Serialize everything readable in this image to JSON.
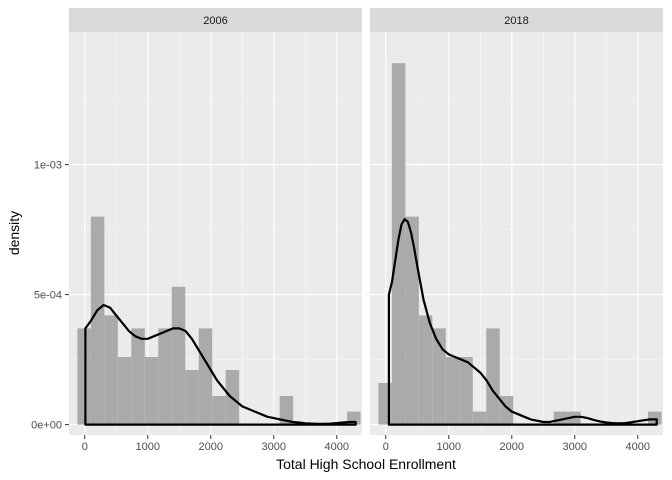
{
  "chart_data": {
    "type": "bar",
    "subtype": "faceted-histogram-with-density",
    "xlabel": "Total High School Enrollment",
    "ylabel": "density",
    "xlim": [
      -250,
      4400
    ],
    "ylim": [
      -4e-05,
      0.00151
    ],
    "x_ticks": [
      0,
      1000,
      2000,
      3000,
      4000
    ],
    "y_ticks": [
      0,
      0.0005,
      0.001
    ],
    "y_tick_labels": [
      "0e+00",
      "5e-04",
      "1e-03"
    ],
    "grid": true,
    "legend": "none",
    "bin_width": 214,
    "colors": {
      "panel_background": "#ebebeb",
      "grid_major": "#ffffff",
      "strip_background": "#d9d9d9",
      "bar_fill": "#a6a6a6",
      "density_line": "#000000"
    },
    "facets": [
      {
        "label": "2006",
        "bins": [
          {
            "x": -10,
            "density": 0.00037
          },
          {
            "x": 204,
            "density": 0.0008
          },
          {
            "x": 418,
            "density": 0.00042
          },
          {
            "x": 632,
            "density": 0.00026
          },
          {
            "x": 846,
            "density": 0.00037
          },
          {
            "x": 1060,
            "density": 0.00026
          },
          {
            "x": 1274,
            "density": 0.00037
          },
          {
            "x": 1488,
            "density": 0.00053
          },
          {
            "x": 1702,
            "density": 0.00021
          },
          {
            "x": 1916,
            "density": 0.00037
          },
          {
            "x": 2130,
            "density": 0.00011
          },
          {
            "x": 2344,
            "density": 0.00021
          },
          {
            "x": 2558,
            "density": 0
          },
          {
            "x": 2772,
            "density": 0
          },
          {
            "x": 2986,
            "density": 0
          },
          {
            "x": 3200,
            "density": 0.00011
          },
          {
            "x": 3414,
            "density": 0
          },
          {
            "x": 3628,
            "density": 0
          },
          {
            "x": 3842,
            "density": 0
          },
          {
            "x": 4056,
            "density": 0
          },
          {
            "x": 4270,
            "density": 5e-05
          }
        ],
        "density_curve": {
          "x": [
            10,
            100,
            200,
            300,
            400,
            500,
            600,
            700,
            800,
            900,
            1000,
            1100,
            1200,
            1300,
            1400,
            1500,
            1600,
            1700,
            1800,
            1900,
            2000,
            2100,
            2200,
            2300,
            2400,
            2500,
            2600,
            2700,
            2800,
            2900,
            3000,
            3100,
            3200,
            3300,
            3400,
            3500,
            3600,
            3700,
            3800,
            3900,
            4000,
            4100,
            4200,
            4300
          ],
          "y": [
            0.00037,
            0.0004,
            0.00044,
            0.00046,
            0.00045,
            0.00042,
            0.00039,
            0.00036,
            0.00034,
            0.00033,
            0.00033,
            0.00034,
            0.00035,
            0.00036,
            0.00037,
            0.00037,
            0.00036,
            0.00033,
            0.00029,
            0.00025,
            0.00021,
            0.00017,
            0.00014,
            0.00011,
            9e-05,
            7e-05,
            6e-05,
            5e-05,
            4e-05,
            3e-05,
            2.5e-05,
            2e-05,
            1.5e-05,
            1e-05,
            8e-06,
            5e-06,
            4e-06,
            3e-06,
            3e-06,
            4e-06,
            6e-06,
            8e-06,
            1e-05,
            1e-05
          ]
        }
      },
      {
        "label": "2018",
        "bins": [
          {
            "x": -10,
            "density": 0.00016
          },
          {
            "x": 204,
            "density": 0.00139
          },
          {
            "x": 418,
            "density": 0.0008
          },
          {
            "x": 632,
            "density": 0.00042
          },
          {
            "x": 846,
            "density": 0.00037
          },
          {
            "x": 1060,
            "density": 0.00026
          },
          {
            "x": 1274,
            "density": 0.00026
          },
          {
            "x": 1488,
            "density": 5e-05
          },
          {
            "x": 1702,
            "density": 0.00037
          },
          {
            "x": 1916,
            "density": 0.00011
          },
          {
            "x": 2130,
            "density": 0
          },
          {
            "x": 2344,
            "density": 0
          },
          {
            "x": 2558,
            "density": 0
          },
          {
            "x": 2772,
            "density": 5e-05
          },
          {
            "x": 2986,
            "density": 5e-05
          },
          {
            "x": 3200,
            "density": 0
          },
          {
            "x": 3414,
            "density": 0
          },
          {
            "x": 3628,
            "density": 0
          },
          {
            "x": 3842,
            "density": 0
          },
          {
            "x": 4056,
            "density": 0
          },
          {
            "x": 4270,
            "density": 5e-05
          }
        ],
        "density_curve": {
          "x": [
            50,
            100,
            150,
            200,
            250,
            300,
            350,
            400,
            450,
            500,
            600,
            700,
            800,
            900,
            1000,
            1100,
            1200,
            1300,
            1400,
            1500,
            1600,
            1700,
            1800,
            1900,
            2000,
            2100,
            2200,
            2300,
            2400,
            2500,
            2600,
            2700,
            2800,
            2900,
            3000,
            3100,
            3200,
            3300,
            3400,
            3500,
            3600,
            3700,
            3800,
            3900,
            4000,
            4100,
            4200,
            4300
          ],
          "y": [
            0.0005,
            0.00055,
            0.00063,
            0.00071,
            0.00077,
            0.00079,
            0.00078,
            0.00074,
            0.00068,
            0.00061,
            0.00048,
            0.00039,
            0.00033,
            0.00029,
            0.00027,
            0.00026,
            0.00025,
            0.00024,
            0.00022,
            0.0002,
            0.00017,
            0.00013,
            0.0001,
            7e-05,
            5e-05,
            4e-05,
            3e-05,
            2e-05,
            1.5e-05,
            1e-05,
            1e-05,
            1.5e-05,
            2e-05,
            2.5e-05,
            3e-05,
            3e-05,
            2.5e-05,
            1.8e-05,
            1.2e-05,
            8e-06,
            6e-06,
            5e-06,
            6e-06,
            9e-06,
            1.3e-05,
            1.7e-05,
            2e-05,
            2e-05
          ]
        }
      }
    ]
  }
}
